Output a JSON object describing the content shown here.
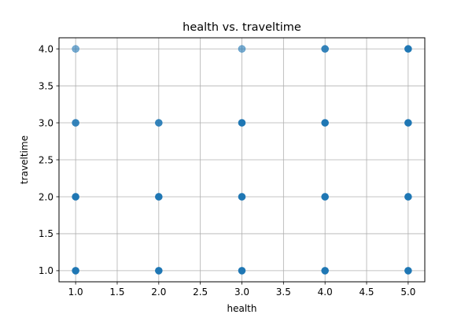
{
  "chart_data": {
    "type": "scatter",
    "title": "health vs. traveltime",
    "xlabel": "health",
    "ylabel": "traveltime",
    "xlim": [
      0.8,
      5.2
    ],
    "ylim": [
      0.85,
      4.15
    ],
    "xticks": [
      1.0,
      1.5,
      2.0,
      2.5,
      3.0,
      3.5,
      4.0,
      4.5,
      5.0
    ],
    "xtick_labels": [
      "1.0",
      "1.5",
      "2.0",
      "2.5",
      "3.0",
      "3.5",
      "4.0",
      "4.5",
      "5.0"
    ],
    "yticks": [
      1.0,
      1.5,
      2.0,
      2.5,
      3.0,
      3.5,
      4.0
    ],
    "ytick_labels": [
      "1.0",
      "1.5",
      "2.0",
      "2.5",
      "3.0",
      "3.5",
      "4.0"
    ],
    "grid": true,
    "marker_color": "#1f77b4",
    "points": [
      {
        "x": 1,
        "y": 1,
        "opacity": 1.0
      },
      {
        "x": 1,
        "y": 2,
        "opacity": 1.0
      },
      {
        "x": 1,
        "y": 3,
        "opacity": 0.9
      },
      {
        "x": 1,
        "y": 4,
        "opacity": 0.6
      },
      {
        "x": 2,
        "y": 1,
        "opacity": 1.0
      },
      {
        "x": 2,
        "y": 2,
        "opacity": 1.0
      },
      {
        "x": 2,
        "y": 3,
        "opacity": 0.9
      },
      {
        "x": 3,
        "y": 1,
        "opacity": 1.0
      },
      {
        "x": 3,
        "y": 2,
        "opacity": 1.0
      },
      {
        "x": 3,
        "y": 3,
        "opacity": 1.0
      },
      {
        "x": 3,
        "y": 4,
        "opacity": 0.6
      },
      {
        "x": 4,
        "y": 1,
        "opacity": 1.0
      },
      {
        "x": 4,
        "y": 2,
        "opacity": 1.0
      },
      {
        "x": 4,
        "y": 3,
        "opacity": 1.0
      },
      {
        "x": 4,
        "y": 4,
        "opacity": 0.9
      },
      {
        "x": 5,
        "y": 1,
        "opacity": 1.0
      },
      {
        "x": 5,
        "y": 2,
        "opacity": 1.0
      },
      {
        "x": 5,
        "y": 3,
        "opacity": 1.0
      },
      {
        "x": 5,
        "y": 4,
        "opacity": 1.0
      }
    ]
  }
}
